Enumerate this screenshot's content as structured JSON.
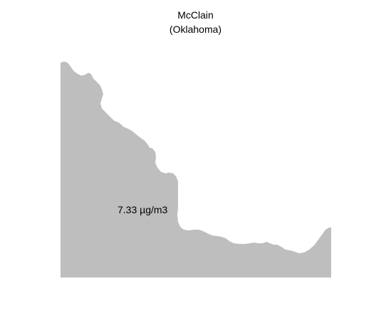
{
  "map": {
    "region_name": "McClain",
    "state": "(Oklahoma)",
    "value_label": "7.33 µg/m3",
    "fill_color": "#bebebe"
  }
}
